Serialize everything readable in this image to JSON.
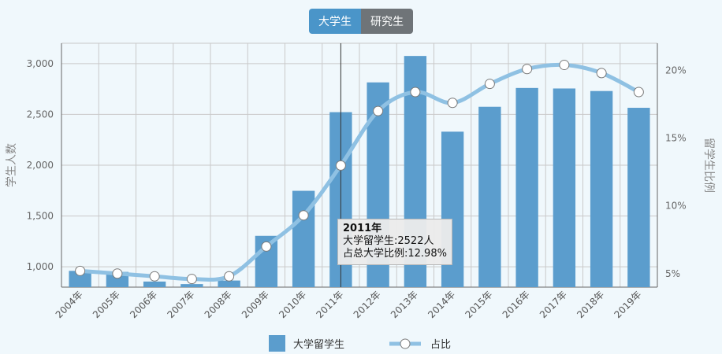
{
  "toggle": {
    "undergrad_label": "大学生",
    "grad_label": "研究生"
  },
  "colors": {
    "bar": "#5b9dcd",
    "line": "#8fc1e3",
    "background": "#f0f8fc",
    "grid": "#c9c9c9"
  },
  "tooltip": {
    "title": "2011年",
    "line1": "大学留学生:2522人",
    "line2": "占总大学比例:12.98%"
  },
  "chart_data": {
    "type": "bar+line",
    "categories": [
      "2004年",
      "2005年",
      "2006年",
      "2007年",
      "2008年",
      "2009年",
      "2010年",
      "2011年",
      "2012年",
      "2013年",
      "2014年",
      "2015年",
      "2016年",
      "2017年",
      "2018年",
      "2019年"
    ],
    "series": [
      {
        "name": "大学留学生",
        "type": "bar",
        "axis": "left",
        "values": [
          960,
          950,
          855,
          830,
          865,
          1305,
          1748,
          2522,
          2815,
          3075,
          2330,
          2575,
          2760,
          2755,
          2730,
          2565
        ]
      },
      {
        "name": "占比",
        "type": "line",
        "axis": "right",
        "values": [
          5.2,
          5.0,
          4.8,
          4.6,
          4.8,
          7.0,
          9.3,
          12.98,
          17.0,
          18.4,
          17.6,
          19.0,
          20.1,
          20.4,
          19.8,
          18.4
        ]
      }
    ],
    "ylabel_left": "学生人数",
    "ylabel_right": "留学生比例",
    "yticks_left": [
      "1,000",
      "1,500",
      "2,000",
      "2,500",
      "3,000"
    ],
    "yticks_right": [
      "5%",
      "10%",
      "15%",
      "20%"
    ],
    "ylim_left": [
      800,
      3200
    ],
    "ylim_right": [
      4,
      22
    ],
    "grid": true,
    "legend_position": "bottom",
    "highlighted_category": "2011年"
  }
}
